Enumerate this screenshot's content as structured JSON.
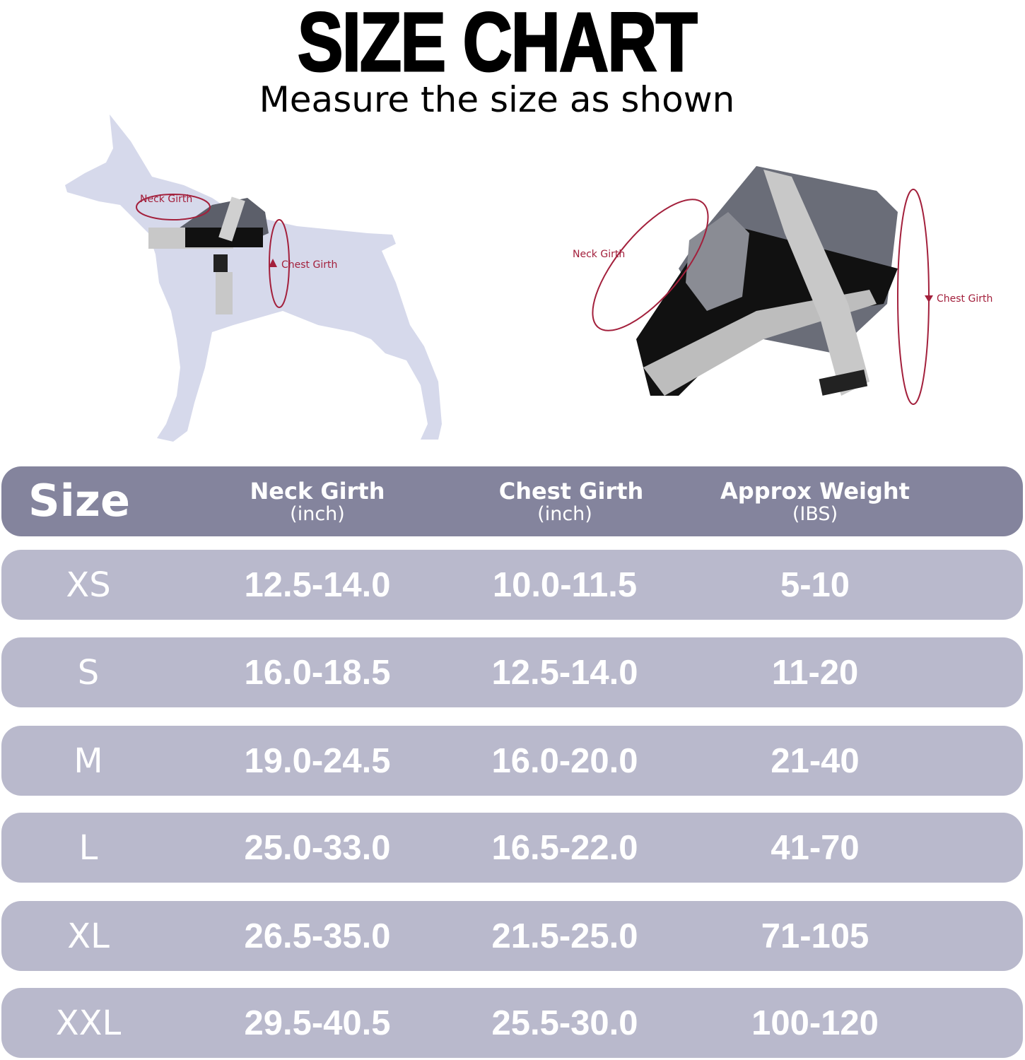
{
  "header": {
    "title": "SIZE CHART",
    "subtitle": "Measure the size as shown"
  },
  "illustration": {
    "dog_labels": {
      "neck": "Neck Girth",
      "chest": "Chest Girth"
    },
    "harness_labels": {
      "neck": "Neck Girth",
      "chest": "Chest Girth"
    }
  },
  "table": {
    "columns": [
      {
        "label": "Size",
        "unit": ""
      },
      {
        "label": "Neck Girth",
        "unit": "(inch)"
      },
      {
        "label": "Chest Girth",
        "unit": "(inch)"
      },
      {
        "label": "Approx Weight",
        "unit": "(IBS)"
      }
    ],
    "rows": [
      [
        "XS",
        "12.5-14.0",
        "10.0-11.5",
        "5-10"
      ],
      [
        "S",
        "16.0-18.5",
        "12.5-14.0",
        "11-20"
      ],
      [
        "M",
        "19.0-24.5",
        "16.0-20.0",
        "21-40"
      ],
      [
        "L",
        "25.0-33.0",
        "16.5-22.0",
        "41-70"
      ],
      [
        "XL",
        "26.5-35.0",
        "21.5-25.0",
        "71-105"
      ],
      [
        "XXL",
        "29.5-40.5",
        "25.5-30.0",
        "100-120"
      ]
    ]
  },
  "colors": {
    "header_row": "#84849d",
    "data_row": "#b9b9cc",
    "measure_line": "#a3203c",
    "dog_silhouette": "#d6d9eb"
  }
}
